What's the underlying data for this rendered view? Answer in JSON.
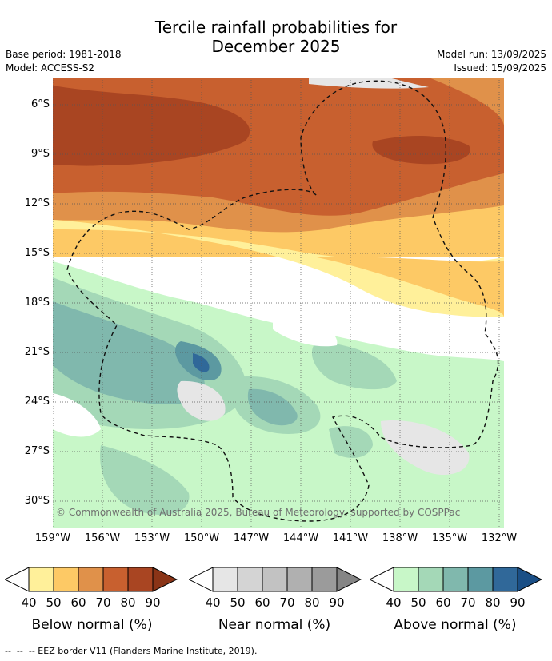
{
  "header": {
    "title_line1": "Tercile rainfall probabilities for",
    "title_line2": "December 2025",
    "base_period": "Base period: 1981-2018",
    "model": "Model: ACCESS-S2",
    "model_run": "Model run: 13/09/2025",
    "issued": "Issued: 15/09/2025"
  },
  "map": {
    "lat_ticks": [
      "6°S",
      "9°S",
      "12°S",
      "15°S",
      "18°S",
      "21°S",
      "24°S",
      "27°S",
      "30°S"
    ],
    "lon_ticks": [
      "159°W",
      "156°W",
      "153°W",
      "150°W",
      "147°W",
      "144°W",
      "141°W",
      "138°W",
      "135°W",
      "132°W"
    ],
    "copyright": "© Commonwealth of Australia 2025, Bureau of Meteorology, supported by COSPPac"
  },
  "legend": {
    "below": {
      "title": "Below normal (%)",
      "labels": [
        "40",
        "50",
        "60",
        "70",
        "80",
        "90"
      ],
      "colors": [
        "#fff09a",
        "#fdc965",
        "#e0914a",
        "#c8602f",
        "#a94522",
        "#8a3417"
      ]
    },
    "near": {
      "title": "Near normal (%)",
      "labels": [
        "40",
        "50",
        "60",
        "70",
        "80",
        "90"
      ],
      "colors": [
        "#e6e6e6",
        "#d4d4d4",
        "#c2c2c2",
        "#b0b0b0",
        "#9b9b9b",
        "#858585"
      ]
    },
    "above": {
      "title": "Above normal (%)",
      "labels": [
        "40",
        "50",
        "60",
        "70",
        "80",
        "90"
      ],
      "colors": [
        "#c8f7c8",
        "#a4d8b7",
        "#80b8ad",
        "#5c99a1",
        "#306899",
        "#1a4f86"
      ]
    }
  },
  "footer": "--  --  -- EEZ border V11 (Flanders Marine Institute, 2019)."
}
